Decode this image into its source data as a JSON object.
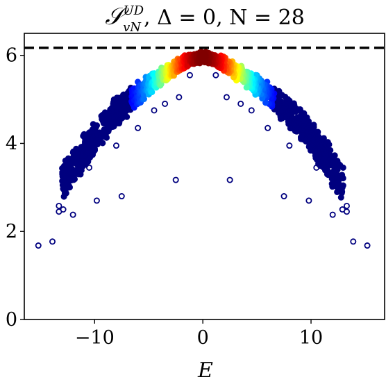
{
  "chart_data": {
    "type": "scatter",
    "title": {
      "symbol": "𝒮",
      "superscript": "UD",
      "subscript": "vN",
      "rest": ", Δ = 0, N = 28"
    },
    "xlabel": "E",
    "ylabel": "",
    "xlim": [
      -16.5,
      16.8
    ],
    "ylim": [
      0,
      6.5
    ],
    "xticks": [
      {
        "value": -10,
        "label": "−10"
      },
      {
        "value": 0,
        "label": "0"
      },
      {
        "value": 10,
        "label": "10"
      }
    ],
    "yticks": [
      {
        "value": 0,
        "label": "0"
      },
      {
        "value": 2,
        "label": "2"
      },
      {
        "value": 4,
        "label": "4"
      },
      {
        "value": 6,
        "label": "6"
      }
    ],
    "grid": false,
    "reference_line": {
      "y": 6.17,
      "style": "dashed",
      "color": "#000000"
    },
    "colormap": "jet (point density)",
    "marker_edge_color": "#00007f",
    "dense_band": {
      "x": [
        -13,
        -12,
        -11,
        -10,
        -9,
        -8,
        -7,
        -6,
        -5,
        -4,
        -3,
        -2,
        -1,
        0,
        1,
        2,
        3,
        4,
        5,
        6,
        7,
        8,
        9,
        10,
        11,
        12,
        13
      ],
      "y_center": [
        3.2,
        3.55,
        3.9,
        4.25,
        4.55,
        4.8,
        5.0,
        5.2,
        5.38,
        5.55,
        5.7,
        5.85,
        5.95,
        6.0,
        5.95,
        5.85,
        5.7,
        5.55,
        5.38,
        5.2,
        5.0,
        4.8,
        4.55,
        4.25,
        3.9,
        3.55,
        3.2
      ],
      "spread": [
        0.35,
        0.35,
        0.35,
        0.3,
        0.3,
        0.28,
        0.25,
        0.22,
        0.2,
        0.18,
        0.16,
        0.14,
        0.12,
        0.1,
        0.12,
        0.14,
        0.16,
        0.18,
        0.2,
        0.22,
        0.25,
        0.28,
        0.3,
        0.3,
        0.35,
        0.35,
        0.35
      ]
    },
    "outlier_points": [
      {
        "x": -15.2,
        "y": 1.68
      },
      {
        "x": -13.9,
        "y": 1.77
      },
      {
        "x": -13.3,
        "y": 2.45
      },
      {
        "x": -13.3,
        "y": 2.58
      },
      {
        "x": -12.0,
        "y": 2.38
      },
      {
        "x": -12.9,
        "y": 2.5
      },
      {
        "x": -9.8,
        "y": 2.7
      },
      {
        "x": -7.5,
        "y": 2.8
      },
      {
        "x": -2.5,
        "y": 3.17
      },
      {
        "x": 2.5,
        "y": 3.17
      },
      {
        "x": 7.5,
        "y": 2.8
      },
      {
        "x": 9.8,
        "y": 2.7
      },
      {
        "x": 12.0,
        "y": 2.38
      },
      {
        "x": 12.9,
        "y": 2.5
      },
      {
        "x": 13.3,
        "y": 2.45
      },
      {
        "x": 13.3,
        "y": 2.58
      },
      {
        "x": 13.9,
        "y": 1.77
      },
      {
        "x": 15.2,
        "y": 1.68
      },
      {
        "x": -11.5,
        "y": 3.3
      },
      {
        "x": 11.5,
        "y": 3.3
      },
      {
        "x": -10.5,
        "y": 3.45
      },
      {
        "x": 10.5,
        "y": 3.45
      },
      {
        "x": -4.5,
        "y": 4.75
      },
      {
        "x": 4.5,
        "y": 4.75
      },
      {
        "x": -3.5,
        "y": 4.9
      },
      {
        "x": 3.5,
        "y": 4.9
      },
      {
        "x": -2.2,
        "y": 5.05
      },
      {
        "x": 2.2,
        "y": 5.05
      },
      {
        "x": -1.2,
        "y": 5.55
      },
      {
        "x": 1.2,
        "y": 5.55
      },
      {
        "x": -6,
        "y": 4.35
      },
      {
        "x": 6,
        "y": 4.35
      },
      {
        "x": -8,
        "y": 3.95
      },
      {
        "x": 8,
        "y": 3.95
      }
    ]
  }
}
